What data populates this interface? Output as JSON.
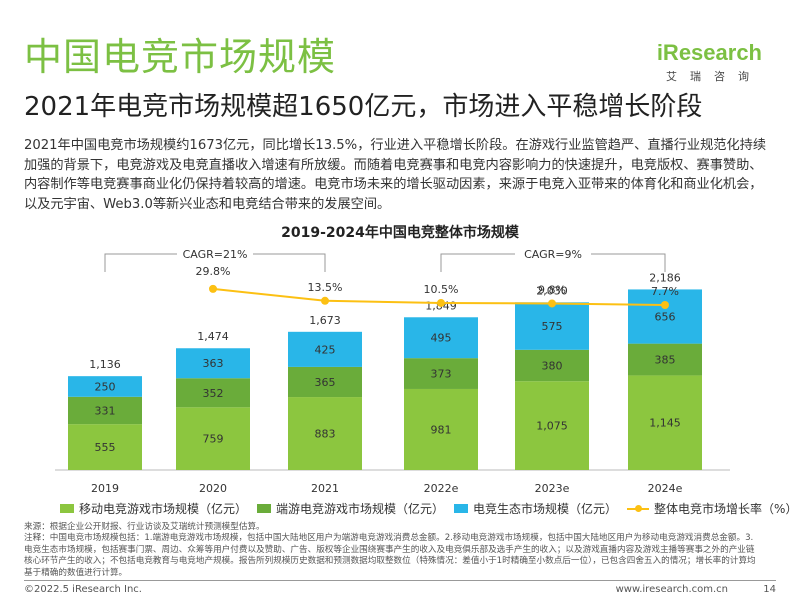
{
  "header": {
    "title": "中国电竞市场规模",
    "subtitle": "2021年电竞市场规模超1650亿元，市场进入平稳增长阶段",
    "logo_brand": "iResearch",
    "logo_sub": "艾瑞咨询"
  },
  "intro": "2021年中国电竞市场规模约1673亿元，同比增长13.5%，行业进入平稳增长阶段。在游戏行业监管趋严、直播行业规范化持续加强的背景下，电竞游戏及电竞直播收入增速有所放缓。而随着电竞赛事和电竞内容影响力的快速提升，电竞版权、赛事赞助、内容制作等电竞赛事商业化仍保持着较高的增速。电竞市场未来的增长驱动因素，来源于电竞入亚带来的体育化和商业化机会，以及元宇宙、Web3.0等新兴业态和电竞结合带来的发展空间。",
  "chart_data": {
    "type": "bar",
    "stacked": true,
    "title": "2019-2024年中国电竞整体市场规模",
    "categories": [
      "2019",
      "2020",
      "2021",
      "2022e",
      "2023e",
      "2024e"
    ],
    "series": [
      {
        "name": "移动电竞游戏市场规模（亿元）",
        "color": "#8cc63f",
        "values": [
          555,
          759,
          883,
          981,
          1075,
          1145
        ]
      },
      {
        "name": "端游电竞游戏市场规模（亿元）",
        "color": "#6aac3a",
        "values": [
          331,
          352,
          365,
          373,
          380,
          385
        ]
      },
      {
        "name": "电竞生态市场规模（亿元）",
        "color": "#29b6e8",
        "values": [
          250,
          363,
          425,
          495,
          575,
          656
        ]
      }
    ],
    "totals": [
      "1,136",
      "1,474",
      "1,673",
      "1,849",
      "2,030",
      "2,186"
    ],
    "line_series": {
      "name": "整体电竞市场增长率（%）",
      "color": "#fcc013",
      "values": [
        29.8,
        13.5,
        10.5,
        9.8,
        7.7
      ],
      "labels": [
        "29.8%",
        "13.5%",
        "10.5%",
        "9.8%",
        "7.7%"
      ],
      "x_categories": [
        "2020",
        "2021",
        "2022e",
        "2023e",
        "2024e"
      ]
    },
    "cagr": [
      {
        "label": "CAGR=21%",
        "from": "2019",
        "to": "2021"
      },
      {
        "label": "CAGR=9%",
        "from": "2022e",
        "to": "2024e"
      }
    ],
    "ylim": [
      0,
      2400
    ],
    "legend_position": "bottom"
  },
  "footnote": "来源：根据企业公开财报、行业访谈及艾瑞统计预测模型估算。\n注释：中国电竞市场规模包括：1.端游电竞游戏市场规模，包括中国大陆地区用户为端游电竞游戏消费总金额。2.移动电竞游戏市场规模，包括中国大陆地区用户为移动电竞游戏消费总金额。3.电竞生态市场规模，包括赛事门票、周边、众筹等用户付费以及赞助、广告、版权等企业围绕赛事产生的收入及电竞俱乐部及选手产生的收入；以及游戏直播内容及游戏主播等赛事之外的产业链核心环节产生的收入；不包括电竞教育与电竞地产规模。报告所列规模历史数据和预测数据均取整数位（特殊情况：差值小于1时精确至小数点后一位），已包含四舍五入的情况；增长率的计算均基于精确的数值进行计算。",
  "footer": {
    "copyright": "©2022.5 iResearch Inc.",
    "site": "www.iresearch.com.cn",
    "page": "14"
  }
}
